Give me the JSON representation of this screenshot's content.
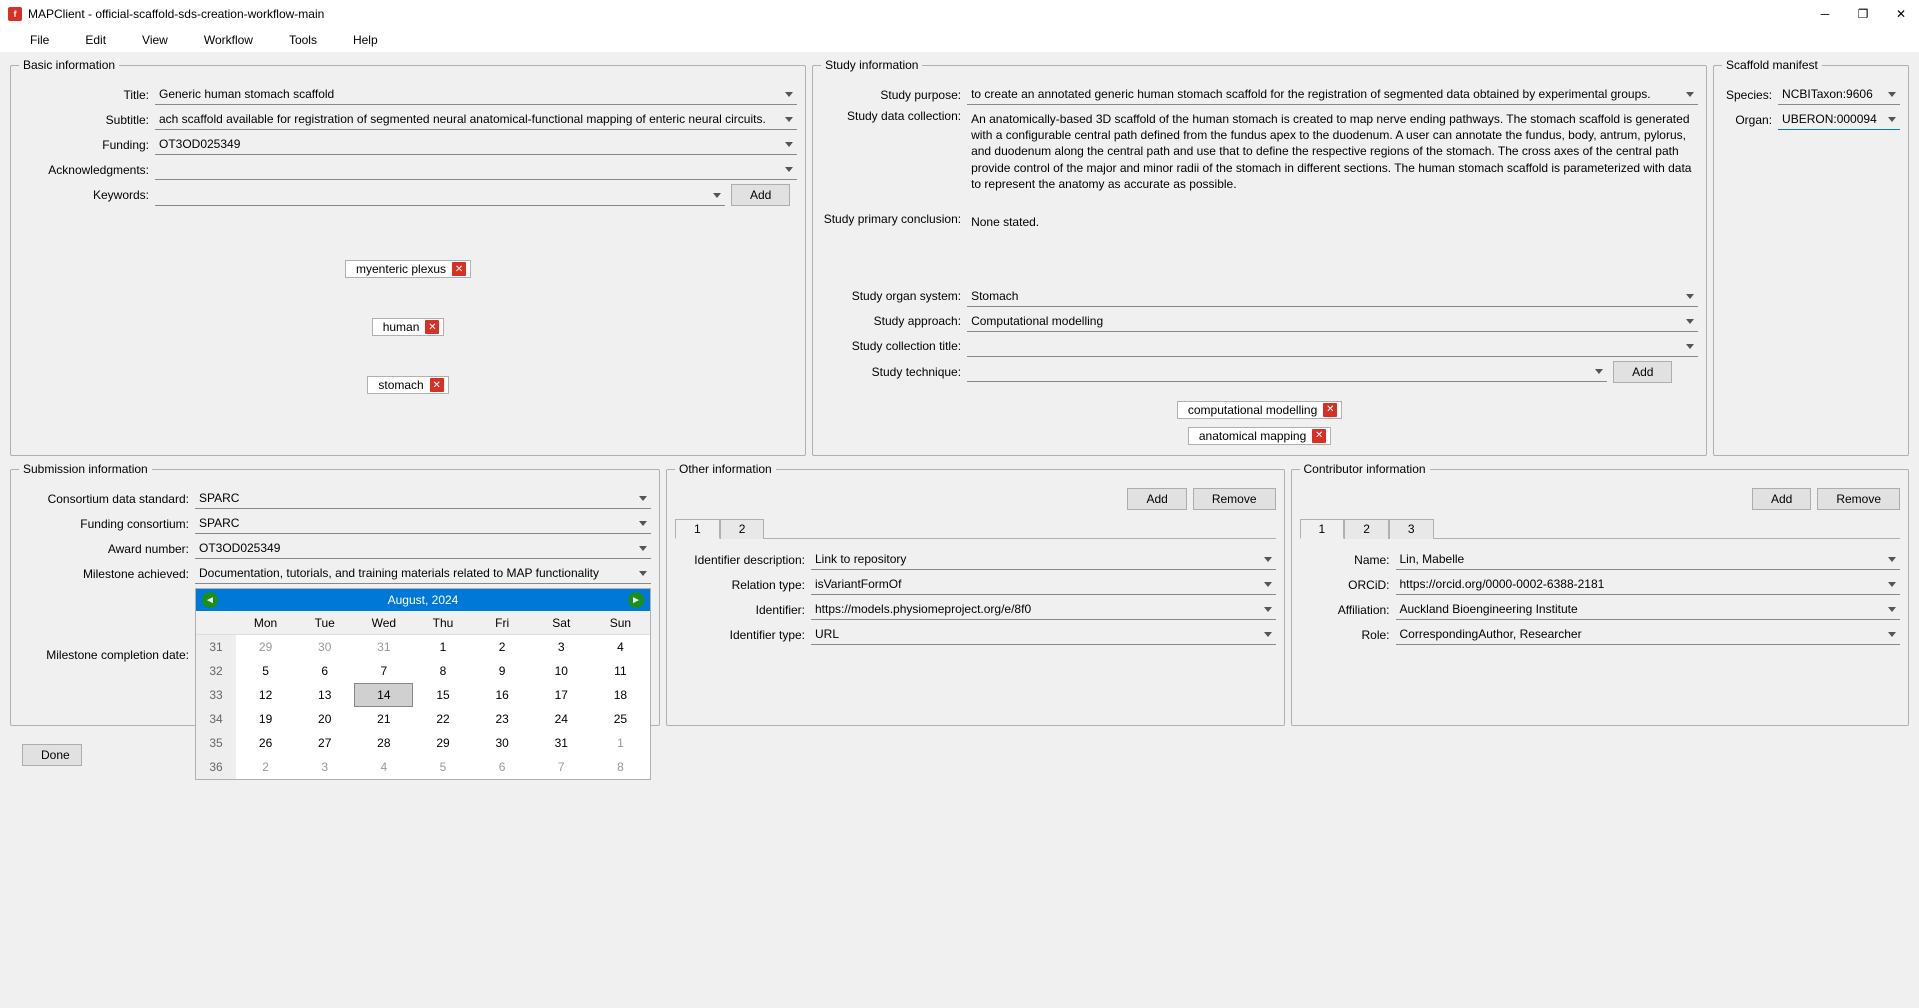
{
  "window": {
    "title": "MAPClient - official-scaffold-sds-creation-workflow-main"
  },
  "menu": [
    "File",
    "Edit",
    "View",
    "Workflow",
    "Tools",
    "Help"
  ],
  "basic": {
    "legend": "Basic information",
    "fields": {
      "title_lbl": "Title:",
      "title_val": "Generic human stomach scaffold",
      "subtitle_lbl": "Subtitle:",
      "subtitle_val": "ach scaffold available for registration of segmented neural anatomical-functional mapping of enteric neural circuits.",
      "funding_lbl": "Funding:",
      "funding_val": "OT3OD025349",
      "ack_lbl": "Acknowledgments:",
      "ack_val": "",
      "keywords_lbl": "Keywords:",
      "add_btn": "Add"
    },
    "tags": [
      "myenteric plexus",
      "human",
      "stomach"
    ]
  },
  "study": {
    "legend": "Study information",
    "purpose_lbl": "Study purpose:",
    "purpose_val": "to create an annotated generic human stomach scaffold for the registration of segmented data obtained by experimental groups.",
    "collection_lbl": "Study data collection:",
    "collection_val": "An anatomically-based 3D scaffold of the human stomach is created to map nerve ending pathways. The stomach scaffold is generated with a configurable central path defined from the fundus apex to the duodenum. A user can annotate the fundus, body, antrum, pylorus, and duodenum along the central path and use that to define the respective regions of the stomach. The cross axes of the central path provide control of the major and minor radii of the stomach in different sections. The human stomach scaffold is parameterized with data to represent the anatomy as accurate as possible.",
    "conclusion_lbl": "Study primary conclusion:",
    "conclusion_val": "None stated.",
    "organ_lbl": "Study organ system:",
    "organ_val": "Stomach",
    "approach_lbl": "Study approach:",
    "approach_val": "Computational modelling",
    "coll_title_lbl": "Study collection title:",
    "coll_title_val": "",
    "technique_lbl": "Study technique:",
    "technique_val": "",
    "add_btn": "Add",
    "tags": [
      "computational modelling",
      "anatomical mapping"
    ]
  },
  "manifest": {
    "legend": "Scaffold manifest",
    "species_lbl": "Species:",
    "species_val": "NCBITaxon:9606",
    "organ_lbl": "Organ:",
    "organ_val": "UBERON:000094"
  },
  "submission": {
    "legend": "Submission information",
    "std_lbl": "Consortium data standard:",
    "std_val": "SPARC",
    "consortium_lbl": "Funding consortium:",
    "consortium_val": "SPARC",
    "award_lbl": "Award number:",
    "award_val": "OT3OD025349",
    "milestone_lbl": "Milestone achieved:",
    "milestone_val": "Documentation, tutorials, and training materials related to MAP functionality",
    "completion_lbl": "Milestone completion date:",
    "cal": {
      "title": "August,   2024",
      "dow": [
        "",
        "Mon",
        "Tue",
        "Wed",
        "Thu",
        "Fri",
        "Sat",
        "Sun"
      ],
      "weeks": [
        {
          "wk": "31",
          "d": [
            "29",
            "30",
            "31",
            "1",
            "2",
            "3",
            "4"
          ],
          "other": [
            0,
            1,
            2
          ]
        },
        {
          "wk": "32",
          "d": [
            "5",
            "6",
            "7",
            "8",
            "9",
            "10",
            "11"
          ],
          "other": []
        },
        {
          "wk": "33",
          "d": [
            "12",
            "13",
            "14",
            "15",
            "16",
            "17",
            "18"
          ],
          "other": [],
          "today": 2
        },
        {
          "wk": "34",
          "d": [
            "19",
            "20",
            "21",
            "22",
            "23",
            "24",
            "25"
          ],
          "other": []
        },
        {
          "wk": "35",
          "d": [
            "26",
            "27",
            "28",
            "29",
            "30",
            "31",
            "1"
          ],
          "other": [
            6
          ]
        },
        {
          "wk": "36",
          "d": [
            "2",
            "3",
            "4",
            "5",
            "6",
            "7",
            "8"
          ],
          "other": [
            0,
            1,
            2,
            3,
            4,
            5,
            6
          ]
        }
      ]
    }
  },
  "other": {
    "legend": "Other information",
    "add_btn": "Add",
    "remove_btn": "Remove",
    "tabs": [
      "1",
      "2"
    ],
    "id_desc_lbl": "Identifier description:",
    "id_desc_val": "Link to repository",
    "rel_lbl": "Relation type:",
    "rel_val": "isVariantFormOf",
    "id_lbl": "Identifier:",
    "id_val": "https://models.physiomeproject.org/e/8f0",
    "id_type_lbl": "Identifier type:",
    "id_type_val": "URL"
  },
  "contributor": {
    "legend": "Contributor information",
    "add_btn": "Add",
    "remove_btn": "Remove",
    "tabs": [
      "1",
      "2",
      "3"
    ],
    "name_lbl": "Name:",
    "name_val": "Lin, Mabelle",
    "orcid_lbl": "ORCiD:",
    "orcid_val": "https://orcid.org/0000-0002-6388-2181",
    "aff_lbl": "Affiliation:",
    "aff_val": "Auckland Bioengineering Institute",
    "role_lbl": "Role:",
    "role_val": "CorrespondingAuthor, Researcher"
  },
  "done_btn": "Done"
}
